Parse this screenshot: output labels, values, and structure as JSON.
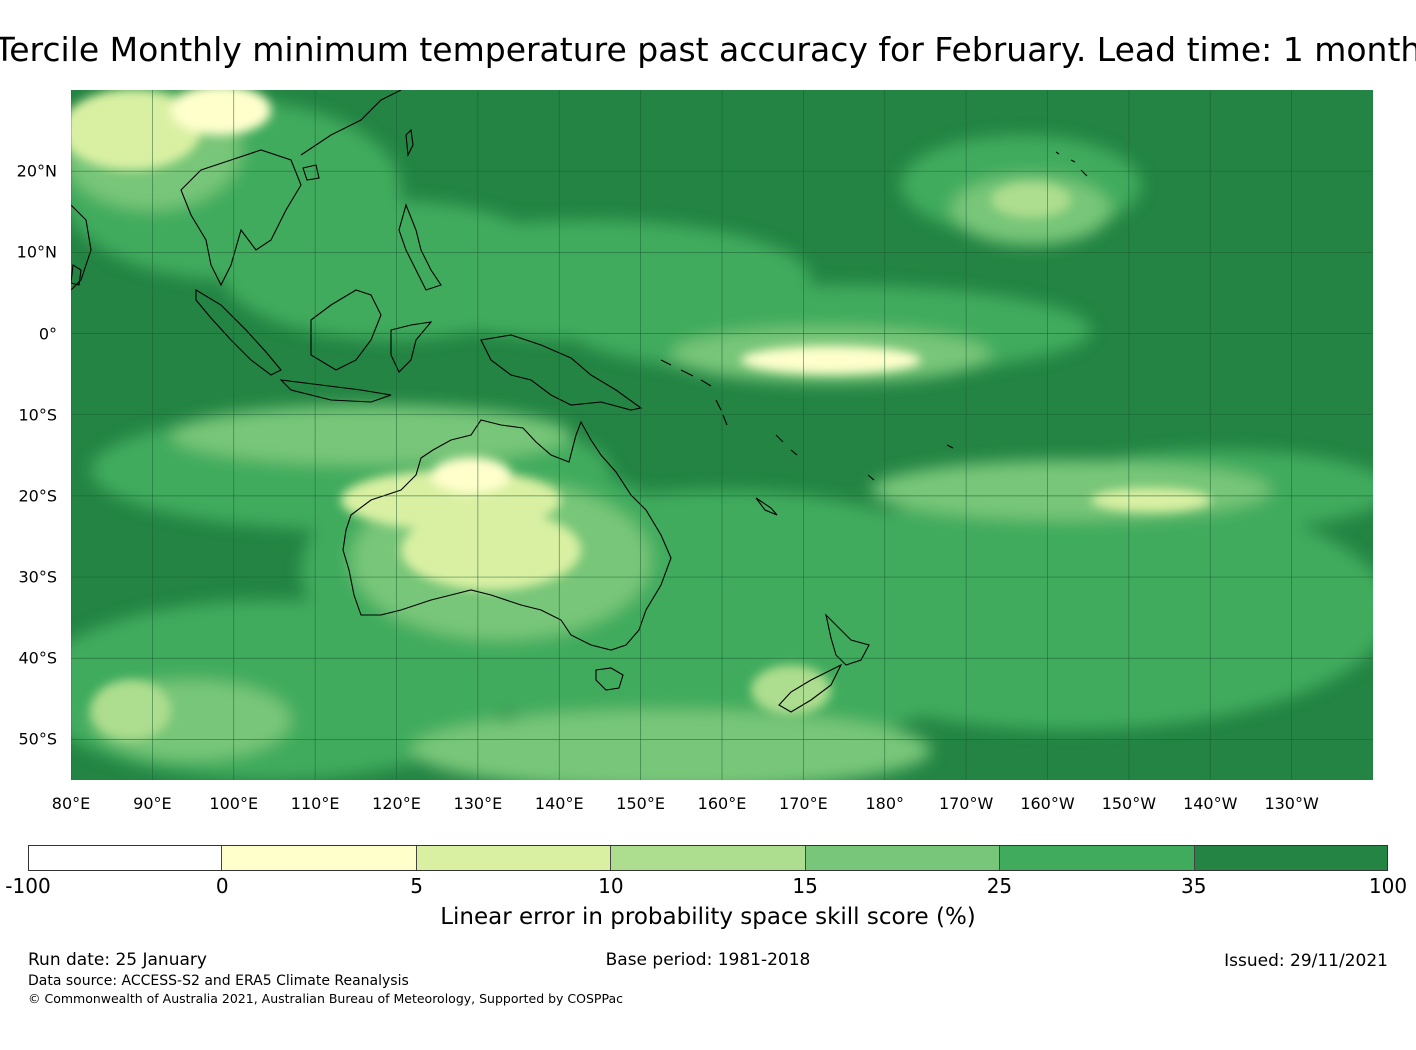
{
  "title": "Tercile Monthly minimum temperature past accuracy for February. Lead time: 1 month",
  "map": {
    "description_layers": [
      "skill-raster",
      "coastlines",
      "graticule"
    ],
    "lat_labels": [
      "20°N",
      "10°N",
      "0°",
      "10°S",
      "20°S",
      "30°S",
      "40°S",
      "50°S"
    ],
    "lon_labels": [
      "80°E",
      "90°E",
      "100°E",
      "110°E",
      "120°E",
      "130°E",
      "140°E",
      "150°E",
      "160°E",
      "170°E",
      "180°",
      "170°W",
      "160°W",
      "150°W",
      "140°W",
      "130°W"
    ],
    "lat_values": [
      20,
      10,
      0,
      -10,
      -20,
      -30,
      -40,
      -50
    ],
    "lon_values": [
      80,
      90,
      100,
      110,
      120,
      130,
      140,
      150,
      160,
      170,
      180,
      190,
      200,
      210,
      220,
      230
    ],
    "extent": {
      "lon_min": 80,
      "lon_max": 240,
      "lat_min": -55,
      "lat_max": 30
    },
    "gridline_color": "#1a5c33"
  },
  "colorbar": {
    "ticks": [
      "-100",
      "0",
      "5",
      "10",
      "15",
      "25",
      "35",
      "100"
    ],
    "colors": [
      "#ffffff",
      "#ffffcc",
      "#d9f0a3",
      "#addd8e",
      "#78c679",
      "#41ab5d",
      "#238443"
    ],
    "label": "Linear error in probability space skill score (%)"
  },
  "footer": {
    "run_date": "Run date: 25 January",
    "base_period": "Base period: 1981-2018",
    "issued": "Issued: 29/11/2021",
    "data_source": "Data source: ACCESS-S2 and ERA5 Climate Reanalysis",
    "copyright": "© Commonwealth of Australia 2021, Australian Bureau of Meteorology, Supported by COSPPac"
  }
}
